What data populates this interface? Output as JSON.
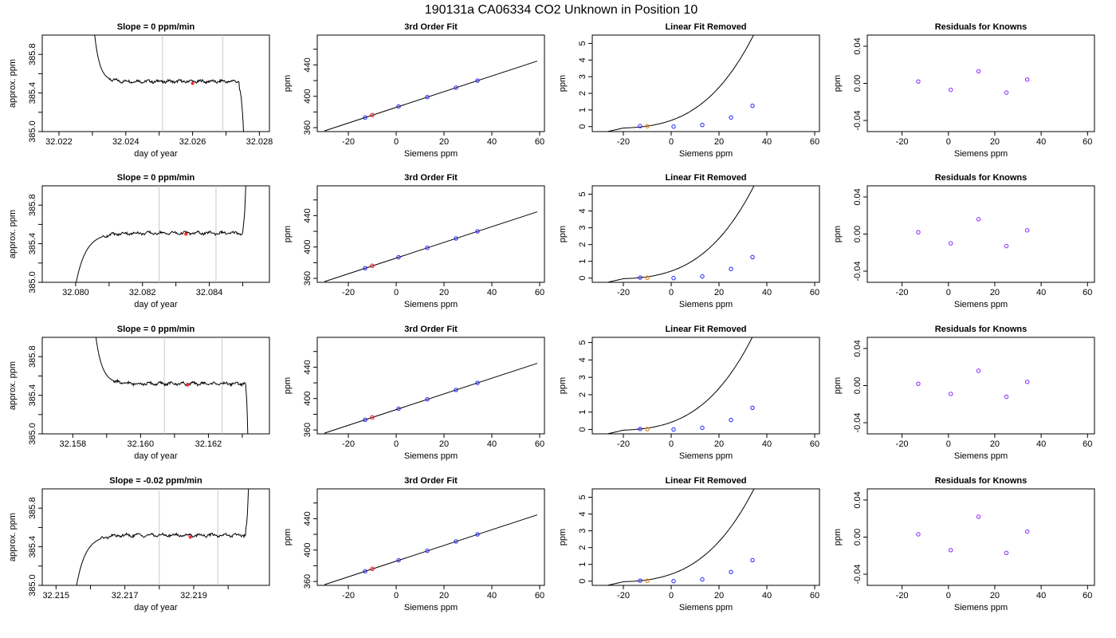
{
  "title": "190131a      CA06334    CO2 Unknown in Position  10",
  "colors": {
    "line": "#000000",
    "vline": "#c8c8c8",
    "red": "#ff2a2a",
    "blue": "#2020ff",
    "orange": "#e08a1e",
    "purple": "#8a20ff"
  },
  "chart_data": [
    {
      "type": "line",
      "row": 0,
      "title": "Slope =  0  ppm/min",
      "xlabel": "day of year",
      "ylabel": "approx. ppm",
      "xlim": [
        32.0215,
        32.0283
      ],
      "ylim": [
        385.0,
        386.0
      ],
      "xticks": [
        32.022,
        32.024,
        32.026,
        32.028
      ],
      "xminor": [
        32.023,
        32.025,
        32.027
      ],
      "yticks": [
        385.0,
        385.4,
        385.8
      ],
      "yminor": [
        385.2,
        385.6
      ],
      "vlines": [
        32.0251,
        32.0269
      ],
      "marker": {
        "x": 32.026,
        "y": 385.5
      },
      "shape": "settle_from_above",
      "trace": {
        "start": 32.023,
        "rise": 32.0235,
        "plateau": 385.52,
        "drop": 32.0274,
        "end": 32.0276
      }
    },
    {
      "type": "line",
      "row": 0,
      "title": "3rd Order Fit",
      "xlabel": "Siemens ppm",
      "ylabel": "ppm",
      "xlim": [
        -33,
        62
      ],
      "ylim": [
        355,
        478
      ],
      "xticks": [
        -20,
        0,
        20,
        40,
        60
      ],
      "yticks": [
        360,
        400,
        440
      ],
      "yminor": [
        380,
        420,
        460
      ],
      "fit": {
        "x0": -30,
        "x1": 59,
        "slope": 1.0,
        "intercept": 385.9
      },
      "points": [
        {
          "x": -13,
          "y": 373
        },
        {
          "x": 1,
          "y": 387
        },
        {
          "x": 13,
          "y": 399
        },
        {
          "x": 25,
          "y": 411
        },
        {
          "x": 34,
          "y": 420
        }
      ],
      "unknown": {
        "x": -10,
        "y": 376
      }
    },
    {
      "type": "line",
      "row": 0,
      "title": "Linear Fit Removed",
      "xlabel": "Siemens ppm",
      "ylabel": "ppm",
      "xlim": [
        -33,
        62
      ],
      "ylim": [
        -0.3,
        5.5
      ],
      "xticks": [
        -20,
        0,
        20,
        40,
        60
      ],
      "yticks": [
        0,
        1,
        2,
        3,
        4,
        5
      ],
      "curve": {
        "x0": -30,
        "x1": 59,
        "c": -0.29,
        "cx": -31,
        "a": 5.7e-06,
        "p": 3.3
      },
      "points": [
        {
          "x": -13,
          "y": 0.03
        },
        {
          "x": 1,
          "y": 0.0
        },
        {
          "x": 13,
          "y": 0.1
        },
        {
          "x": 25,
          "y": 0.55
        },
        {
          "x": 34,
          "y": 1.25
        }
      ],
      "unknown": {
        "x": -10,
        "y": 0.02
      }
    },
    {
      "type": "scatter",
      "row": 0,
      "title": "Residuals for Knowns",
      "xlabel": "Siemens ppm",
      "ylabel": "ppm",
      "xlim": [
        -35,
        63
      ],
      "ylim": [
        -0.052,
        0.052
      ],
      "xticks": [
        -20,
        0,
        20,
        40,
        60
      ],
      "yticks": [
        -0.04,
        0.0,
        0.04
      ],
      "points": [
        {
          "x": -13,
          "y": 0.002
        },
        {
          "x": 1,
          "y": -0.007
        },
        {
          "x": 13,
          "y": 0.013
        },
        {
          "x": 25,
          "y": -0.01
        },
        {
          "x": 34,
          "y": 0.004
        }
      ]
    },
    {
      "type": "line",
      "row": 1,
      "title": "Slope =  0  ppm/min",
      "xlabel": "day of year",
      "ylabel": "approx. ppm",
      "xlim": [
        32.079,
        32.0858
      ],
      "ylim": [
        385.0,
        386.0
      ],
      "xticks": [
        32.08,
        32.082,
        32.084
      ],
      "xminor": [
        32.081,
        32.083,
        32.085
      ],
      "yticks": [
        385.0,
        385.4,
        385.8
      ],
      "yminor": [
        385.2,
        385.6
      ],
      "vlines": [
        32.0825,
        32.0842
      ],
      "marker": {
        "x": 32.0833,
        "y": 385.5
      },
      "shape": "rise_then_spike",
      "trace": {
        "start": 32.0799,
        "rise": 32.0808,
        "plateau": 385.51,
        "drop": 32.085,
        "end": 32.0852
      }
    },
    {
      "type": "line",
      "row": 1,
      "title": "3rd Order Fit",
      "xlabel": "Siemens ppm",
      "ylabel": "ppm",
      "xlim": [
        -33,
        62
      ],
      "ylim": [
        355,
        478
      ],
      "xticks": [
        -20,
        0,
        20,
        40,
        60
      ],
      "yticks": [
        360,
        400,
        440
      ],
      "yminor": [
        380,
        420,
        460
      ],
      "fit": {
        "x0": -30,
        "x1": 59,
        "slope": 1.0,
        "intercept": 385.9
      },
      "points": [
        {
          "x": -13,
          "y": 373
        },
        {
          "x": 1,
          "y": 387
        },
        {
          "x": 13,
          "y": 399
        },
        {
          "x": 25,
          "y": 411
        },
        {
          "x": 34,
          "y": 420
        }
      ],
      "unknown": {
        "x": -10,
        "y": 376
      }
    },
    {
      "type": "line",
      "row": 1,
      "title": "Linear Fit Removed",
      "xlabel": "Siemens ppm",
      "ylabel": "ppm",
      "xlim": [
        -33,
        62
      ],
      "ylim": [
        -0.25,
        5.5
      ],
      "xticks": [
        -20,
        0,
        20,
        40,
        60
      ],
      "yticks": [
        0,
        1,
        2,
        3,
        4,
        5
      ],
      "curve": {
        "x0": -30,
        "x1": 59,
        "c": -0.05,
        "cx": -31,
        "a": 5.6e-06,
        "p": 3.3
      },
      "points": [
        {
          "x": -13,
          "y": 0.03
        },
        {
          "x": 1,
          "y": 0.0
        },
        {
          "x": 13,
          "y": 0.1
        },
        {
          "x": 25,
          "y": 0.55
        },
        {
          "x": 34,
          "y": 1.25
        }
      ],
      "unknown": {
        "x": -10,
        "y": 0.02
      }
    },
    {
      "type": "scatter",
      "row": 1,
      "title": "Residuals for Knowns",
      "xlabel": "Siemens ppm",
      "ylabel": "ppm",
      "xlim": [
        -35,
        63
      ],
      "ylim": [
        -0.052,
        0.052
      ],
      "xticks": [
        -20,
        0,
        20,
        40,
        60
      ],
      "yticks": [
        -0.04,
        0.0,
        0.04
      ],
      "points": [
        {
          "x": -13,
          "y": 0.002
        },
        {
          "x": 1,
          "y": -0.01
        },
        {
          "x": 13,
          "y": 0.016
        },
        {
          "x": 25,
          "y": -0.013
        },
        {
          "x": 34,
          "y": 0.004
        }
      ]
    },
    {
      "type": "line",
      "row": 2,
      "title": "Slope =  0  ppm/min",
      "xlabel": "day of year",
      "ylabel": "approx. ppm",
      "xlim": [
        32.1571,
        32.1638
      ],
      "ylim": [
        385.0,
        386.0
      ],
      "xticks": [
        32.158,
        32.16,
        32.162
      ],
      "xminor": [
        32.159,
        32.161,
        32.163
      ],
      "yticks": [
        385.0,
        385.4,
        385.8
      ],
      "yminor": [
        385.2,
        385.6
      ],
      "vlines": [
        32.1607,
        32.1624
      ],
      "marker": {
        "x": 32.1614,
        "y": 385.51
      },
      "shape": "settle_from_above",
      "trace": {
        "start": 32.1586,
        "rise": 32.1592,
        "plateau": 385.52,
        "drop": 32.1631,
        "end": 32.1632
      }
    },
    {
      "type": "line",
      "row": 2,
      "title": "3rd Order Fit",
      "xlabel": "Siemens ppm",
      "ylabel": "ppm",
      "xlim": [
        -33,
        62
      ],
      "ylim": [
        355,
        478
      ],
      "xticks": [
        -20,
        0,
        20,
        40,
        60
      ],
      "yticks": [
        360,
        400,
        440
      ],
      "yminor": [
        380,
        420,
        460
      ],
      "fit": {
        "x0": -30,
        "x1": 59,
        "slope": 1.0,
        "intercept": 385.9
      },
      "points": [
        {
          "x": -13,
          "y": 373
        },
        {
          "x": 1,
          "y": 387
        },
        {
          "x": 13,
          "y": 399
        },
        {
          "x": 25,
          "y": 411
        },
        {
          "x": 34,
          "y": 420
        }
      ],
      "unknown": {
        "x": -10,
        "y": 376
      }
    },
    {
      "type": "line",
      "row": 2,
      "title": "Linear Fit Removed",
      "xlabel": "Siemens ppm",
      "ylabel": "ppm",
      "xlim": [
        -33,
        62
      ],
      "ylim": [
        -0.25,
        5.3
      ],
      "xticks": [
        -20,
        0,
        20,
        40,
        60
      ],
      "yticks": [
        0,
        1,
        2,
        3,
        4,
        5
      ],
      "curve": {
        "x0": -30,
        "x1": 59,
        "c": -0.05,
        "cx": -31,
        "a": 5.6e-06,
        "p": 3.3
      },
      "points": [
        {
          "x": -13,
          "y": 0.03
        },
        {
          "x": 1,
          "y": 0.0
        },
        {
          "x": 13,
          "y": 0.1
        },
        {
          "x": 25,
          "y": 0.55
        },
        {
          "x": 34,
          "y": 1.25
        }
      ],
      "unknown": {
        "x": -10,
        "y": 0.02
      }
    },
    {
      "type": "scatter",
      "row": 2,
      "title": "Residuals for Knowns",
      "xlabel": "Siemens ppm",
      "ylabel": "ppm",
      "xlim": [
        -35,
        63
      ],
      "ylim": [
        -0.052,
        0.052
      ],
      "xticks": [
        -20,
        0,
        20,
        40,
        60
      ],
      "yticks": [
        -0.04,
        0.0,
        0.04
      ],
      "points": [
        {
          "x": -13,
          "y": 0.002
        },
        {
          "x": 1,
          "y": -0.009
        },
        {
          "x": 13,
          "y": 0.016
        },
        {
          "x": 25,
          "y": -0.012
        },
        {
          "x": 34,
          "y": 0.004
        }
      ]
    },
    {
      "type": "line",
      "row": 3,
      "title": "Slope =  -0.02  ppm/min",
      "xlabel": "day of year",
      "ylabel": "approx. ppm",
      "xlim": [
        32.2146,
        32.2212
      ],
      "ylim": [
        385.0,
        386.0
      ],
      "xticks": [
        32.215,
        32.217,
        32.219
      ],
      "xminor": [
        32.216,
        32.218,
        32.22
      ],
      "yticks": [
        385.0,
        385.4,
        385.8
      ],
      "yminor": [
        385.2,
        385.6
      ],
      "vlines": [
        32.218,
        32.2197
      ],
      "marker": {
        "x": 32.2189,
        "y": 385.5
      },
      "shape": "rise_then_spike",
      "trace": {
        "start": 32.2155,
        "rise": 32.2163,
        "plateau": 385.52,
        "drop": 32.2205,
        "end": 32.2207
      }
    },
    {
      "type": "line",
      "row": 3,
      "title": "3rd Order Fit",
      "xlabel": "Siemens ppm",
      "ylabel": "ppm",
      "xlim": [
        -33,
        62
      ],
      "ylim": [
        355,
        478
      ],
      "xticks": [
        -20,
        0,
        20,
        40,
        60
      ],
      "yticks": [
        360,
        400,
        440
      ],
      "yminor": [
        380,
        420,
        460
      ],
      "fit": {
        "x0": -30,
        "x1": 59,
        "slope": 1.0,
        "intercept": 385.9
      },
      "points": [
        {
          "x": -13,
          "y": 373
        },
        {
          "x": 1,
          "y": 387
        },
        {
          "x": 13,
          "y": 399
        },
        {
          "x": 25,
          "y": 411
        },
        {
          "x": 34,
          "y": 420
        }
      ],
      "unknown": {
        "x": -10,
        "y": 376
      }
    },
    {
      "type": "line",
      "row": 3,
      "title": "Linear Fit Removed",
      "xlabel": "Siemens ppm",
      "ylabel": "ppm",
      "xlim": [
        -33,
        62
      ],
      "ylim": [
        -0.25,
        5.5
      ],
      "xticks": [
        -20,
        0,
        20,
        40,
        60
      ],
      "yticks": [
        0,
        1,
        2,
        3,
        4,
        5
      ],
      "curve": {
        "x0": -30,
        "x1": 59,
        "c": -0.05,
        "cx": -31,
        "a": 5.6e-06,
        "p": 3.3
      },
      "points": [
        {
          "x": -13,
          "y": 0.03
        },
        {
          "x": 1,
          "y": 0.0
        },
        {
          "x": 13,
          "y": 0.1
        },
        {
          "x": 25,
          "y": 0.55
        },
        {
          "x": 34,
          "y": 1.25
        }
      ],
      "unknown": {
        "x": -10,
        "y": 0.02
      }
    },
    {
      "type": "scatter",
      "row": 3,
      "title": "Residuals for Knowns",
      "xlabel": "Siemens ppm",
      "ylabel": "ppm",
      "xlim": [
        -35,
        63
      ],
      "ylim": [
        -0.052,
        0.052
      ],
      "xticks": [
        -20,
        0,
        20,
        40,
        60
      ],
      "yticks": [
        -0.04,
        0.0,
        0.04
      ],
      "points": [
        {
          "x": -13,
          "y": 0.003
        },
        {
          "x": 1,
          "y": -0.014
        },
        {
          "x": 13,
          "y": 0.022
        },
        {
          "x": 25,
          "y": -0.017
        },
        {
          "x": 34,
          "y": 0.006
        }
      ]
    }
  ]
}
